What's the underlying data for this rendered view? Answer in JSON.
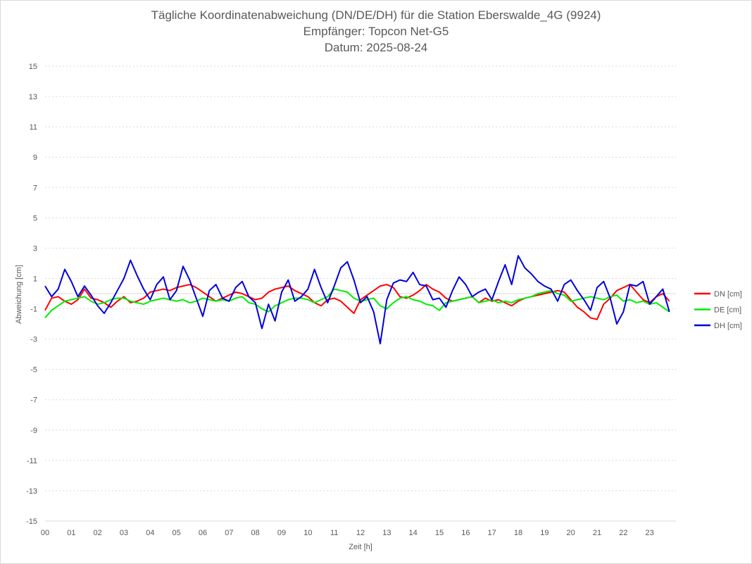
{
  "chart_data": {
    "type": "line",
    "title_lines": [
      "Tägliche Koordinatenabweichung (DN/DE/DH) für die Station Eberswalde_4G (9924)",
      "Empfänger: Topcon Net-G5",
      "Datum: 2025-08-24"
    ],
    "xlabel": "Zeit [h]",
    "ylabel": "Abweichung [cm]",
    "xlim": [
      0,
      24
    ],
    "ylim": [
      -15,
      15
    ],
    "x_ticks": [
      "00",
      "01",
      "02",
      "03",
      "04",
      "05",
      "06",
      "07",
      "08",
      "09",
      "10",
      "11",
      "12",
      "13",
      "14",
      "15",
      "16",
      "17",
      "18",
      "19",
      "20",
      "21",
      "22",
      "23"
    ],
    "y_ticks": [
      "15",
      "13",
      "11",
      "9",
      "7",
      "5",
      "3",
      "1",
      "-1",
      "-3",
      "-5",
      "-7",
      "-9",
      "-11",
      "-13",
      "-15"
    ],
    "y_tick_values": [
      15,
      13,
      11,
      9,
      7,
      5,
      3,
      1,
      -1,
      -3,
      -5,
      -7,
      -9,
      -11,
      -13,
      -15
    ],
    "grid": true,
    "legend_position": "right",
    "x_start": 0.0,
    "x_step": 0.25,
    "series": [
      {
        "name": "DN [cm]",
        "color": "#ff0000",
        "values": [
          -1.1,
          -0.3,
          -0.2,
          -0.5,
          -0.7,
          -0.4,
          0.3,
          -0.3,
          -0.4,
          -0.6,
          -0.9,
          -0.5,
          -0.2,
          -0.6,
          -0.5,
          -0.3,
          0.1,
          0.2,
          0.3,
          0.2,
          0.4,
          0.5,
          0.6,
          0.4,
          0.1,
          -0.2,
          -0.5,
          -0.3,
          -0.1,
          0.1,
          0.0,
          -0.2,
          -0.4,
          -0.3,
          0.1,
          0.3,
          0.4,
          0.5,
          0.2,
          0.0,
          -0.2,
          -0.6,
          -0.8,
          -0.4,
          -0.3,
          -0.5,
          -0.9,
          -1.3,
          -0.4,
          -0.1,
          0.2,
          0.5,
          0.6,
          0.4,
          -0.2,
          -0.3,
          -0.1,
          0.2,
          0.6,
          0.3,
          0.1,
          -0.3,
          -0.5,
          -0.4,
          -0.3,
          -0.2,
          -0.6,
          -0.3,
          -0.5,
          -0.4,
          -0.6,
          -0.8,
          -0.5,
          -0.3,
          -0.2,
          -0.1,
          0.0,
          0.1,
          0.2,
          0.1,
          -0.4,
          -0.9,
          -1.2,
          -1.6,
          -1.7,
          -0.7,
          -0.3,
          0.2,
          0.4,
          0.6,
          0.1,
          -0.4,
          -0.6,
          -0.2,
          0.0,
          -0.5
        ],
        "color_name": "red"
      },
      {
        "name": "DE [cm]",
        "color": "#00ee00",
        "values": [
          -1.6,
          -1.1,
          -0.8,
          -0.5,
          -0.4,
          -0.3,
          -0.2,
          -0.5,
          -0.7,
          -0.6,
          -0.4,
          -0.3,
          -0.3,
          -0.5,
          -0.6,
          -0.7,
          -0.5,
          -0.4,
          -0.3,
          -0.4,
          -0.5,
          -0.4,
          -0.6,
          -0.5,
          -0.3,
          -0.4,
          -0.5,
          -0.4,
          -0.5,
          -0.3,
          -0.2,
          -0.6,
          -0.7,
          -1.0,
          -1.2,
          -0.8,
          -0.6,
          -0.4,
          -0.3,
          -0.3,
          -0.4,
          -0.6,
          -0.4,
          -0.2,
          0.3,
          0.2,
          0.1,
          -0.3,
          -0.5,
          -0.4,
          -0.3,
          -0.8,
          -1.0,
          -0.6,
          -0.3,
          -0.2,
          -0.4,
          -0.5,
          -0.7,
          -0.8,
          -1.1,
          -0.6,
          -0.5,
          -0.4,
          -0.3,
          -0.2,
          -0.6,
          -0.5,
          -0.4,
          -0.6,
          -0.5,
          -0.6,
          -0.4,
          -0.3,
          -0.2,
          0.0,
          0.1,
          0.2,
          0.0,
          -0.1,
          -0.5,
          -0.4,
          -0.3,
          -0.2,
          -0.3,
          -0.4,
          -0.2,
          -0.1,
          -0.5,
          -0.4,
          -0.6,
          -0.5,
          -0.7,
          -0.6,
          -0.9,
          -1.2
        ],
        "color_name": "green"
      },
      {
        "name": "DH [cm]",
        "color": "#0000dd",
        "values": [
          0.5,
          -0.2,
          0.3,
          1.6,
          0.8,
          -0.2,
          0.5,
          -0.1,
          -0.8,
          -1.3,
          -0.6,
          0.2,
          1.0,
          2.2,
          1.2,
          0.3,
          -0.4,
          0.6,
          1.1,
          -0.4,
          0.2,
          1.8,
          0.9,
          -0.3,
          -1.5,
          0.2,
          0.6,
          -0.3,
          -0.5,
          0.4,
          0.8,
          -0.2,
          -0.6,
          -2.3,
          -0.7,
          -1.8,
          0.1,
          0.9,
          -0.5,
          -0.2,
          0.3,
          1.6,
          0.4,
          -0.6,
          0.5,
          1.7,
          2.1,
          0.9,
          -0.6,
          -0.2,
          -1.2,
          -3.3,
          -0.4,
          0.7,
          0.9,
          0.8,
          1.4,
          0.6,
          0.5,
          -0.4,
          -0.3,
          -0.9,
          0.2,
          1.1,
          0.6,
          -0.2,
          0.1,
          0.3,
          -0.4,
          0.8,
          1.9,
          0.6,
          2.5,
          1.7,
          1.3,
          0.8,
          0.5,
          0.3,
          -0.5,
          0.6,
          0.9,
          0.2,
          -0.4,
          -1.1,
          0.4,
          0.8,
          -0.3,
          -2.0,
          -1.2,
          0.6,
          0.5,
          0.8,
          -0.7,
          -0.2,
          0.3,
          -1.2
        ],
        "color_name": "blue"
      }
    ]
  }
}
